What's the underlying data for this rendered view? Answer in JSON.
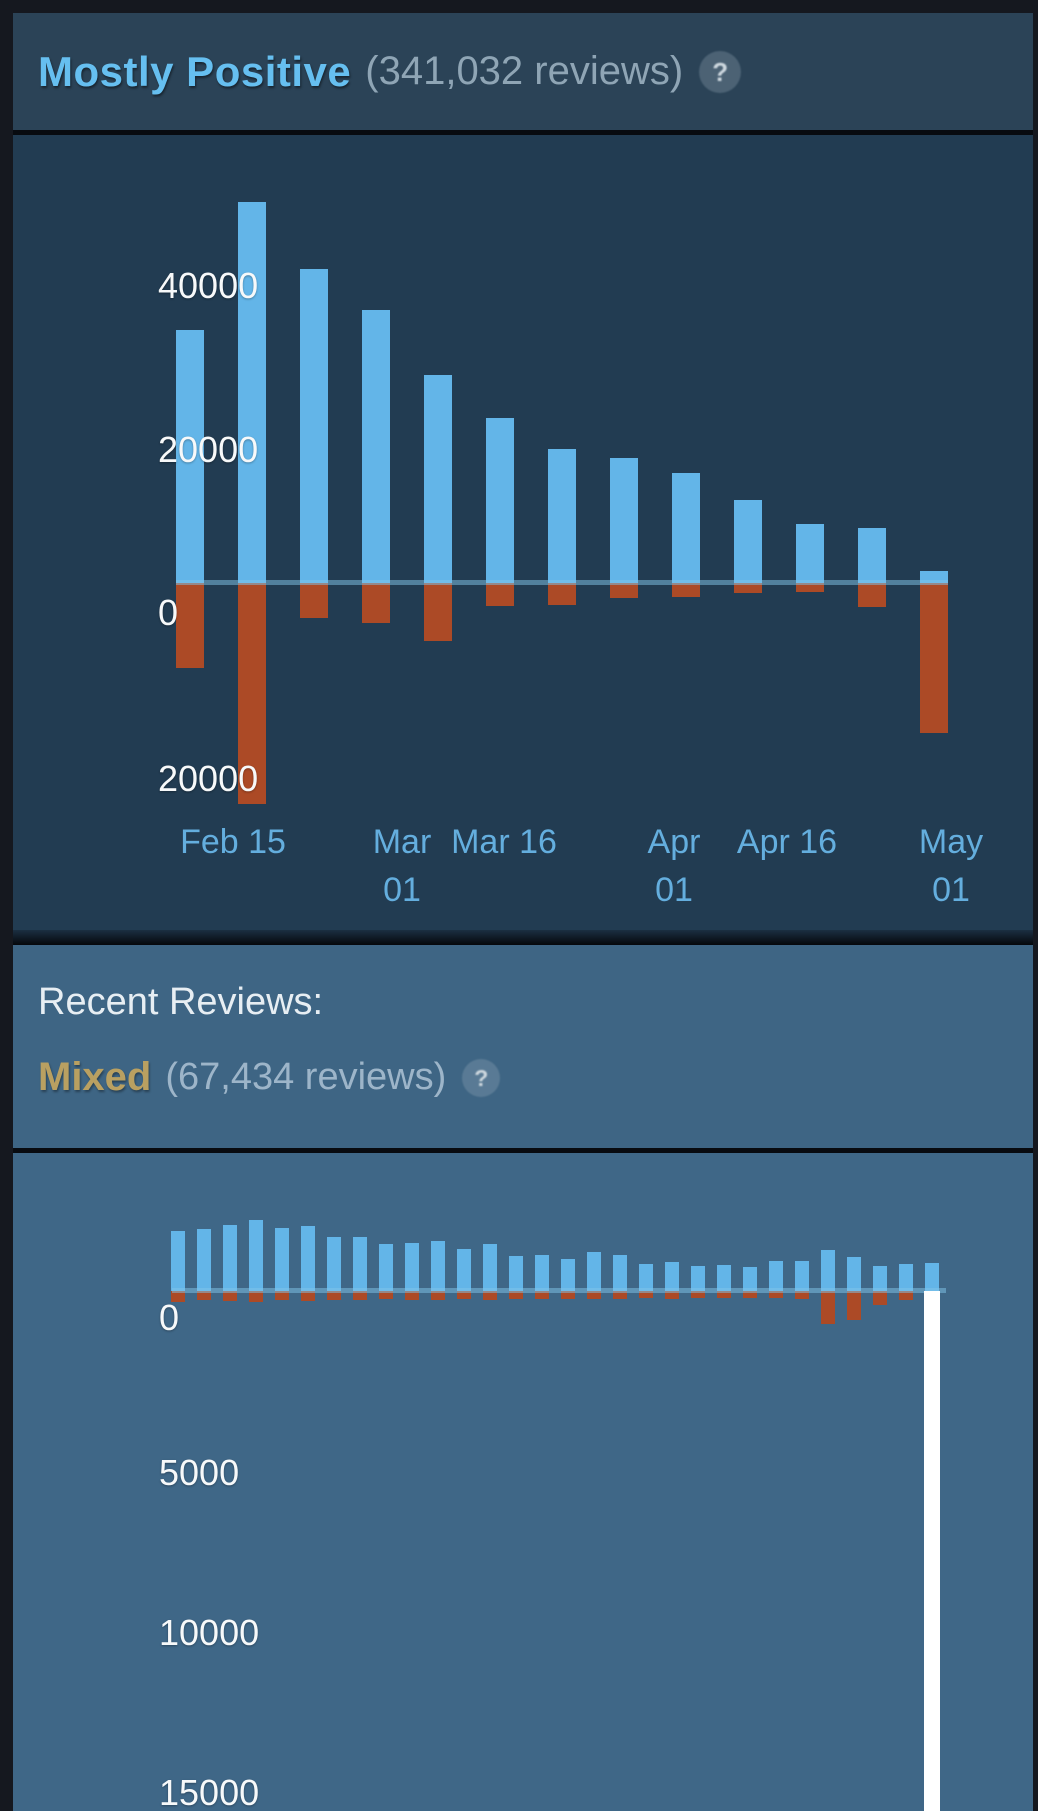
{
  "overall": {
    "summary": "Mostly Positive",
    "reviews_text": "(341,032 reviews)",
    "help_icon": "question-mark"
  },
  "recent": {
    "label": "Recent Reviews:",
    "summary": "Mixed",
    "reviews_text": "(67,434 reviews)",
    "help_icon": "question-mark"
  },
  "help_glyph": "?",
  "colors": {
    "positive_bar": "#63b5e8",
    "negative_bar": "#ac4a26",
    "highlight_bar": "#ffffff",
    "overall_summary_text": "#66bff0",
    "recent_summary_text": "#b9a061",
    "x_label_text": "#64aede",
    "y_label_text": "#f7f9fa",
    "panel_header_bg": "#2b4357",
    "chart1_bg": "#223c52",
    "chart2_bg": "#3f6787"
  },
  "chart_data": [
    {
      "name": "overall-review-histogram",
      "type": "bar",
      "x_tick_labels": [
        "Feb 15",
        "Mar 01",
        "Mar 16",
        "Apr 01",
        "Apr 16",
        "May 01"
      ],
      "y_tick_labels": [
        "40000",
        "20000",
        "0",
        "20000"
      ],
      "y_tick_values": [
        40000,
        20000,
        0,
        -20000
      ],
      "ylim": [
        -28800,
        53300
      ],
      "grid": false,
      "legend": false,
      "series": [
        {
          "name": "positive",
          "values": [
            31000,
            46700,
            38500,
            33500,
            25500,
            20200,
            16400,
            15300,
            13500,
            10200,
            7200,
            6700,
            1500
          ]
        },
        {
          "name": "negative",
          "values": [
            -10400,
            -27100,
            -4300,
            -4900,
            -7100,
            -2800,
            -2700,
            -1850,
            -1700,
            -1200,
            -1100,
            -3000,
            -18400
          ]
        }
      ]
    },
    {
      "name": "recent-review-histogram",
      "type": "bar",
      "y_tick_labels": [
        "0",
        "5000",
        "10000",
        "15000"
      ],
      "y_tick_values": [
        0,
        -5000,
        -10000,
        -15000
      ],
      "ylim": [
        -16900,
        3950
      ],
      "grid": false,
      "legend": false,
      "highlight": {
        "index": 29,
        "style": "white",
        "off_scale_below": true
      },
      "series": [
        {
          "name": "positive",
          "values": [
            1900,
            1950,
            2100,
            2250,
            2000,
            2050,
            1700,
            1700,
            1500,
            1520,
            1580,
            1330,
            1490,
            1110,
            1140,
            1010,
            1230,
            1140,
            860,
            920,
            790,
            820,
            760,
            950,
            950,
            1300,
            1075,
            790,
            855,
            890
          ]
        },
        {
          "name": "negative",
          "values": [
            -350,
            -300,
            -320,
            -340,
            -300,
            -310,
            -280,
            -300,
            -260,
            -280,
            -300,
            -250,
            -280,
            -250,
            -260,
            -240,
            -260,
            -250,
            -220,
            -240,
            -230,
            -220,
            -230,
            -220,
            -240,
            -1050,
            -920,
            -440,
            -280,
            -17000
          ]
        }
      ]
    }
  ]
}
